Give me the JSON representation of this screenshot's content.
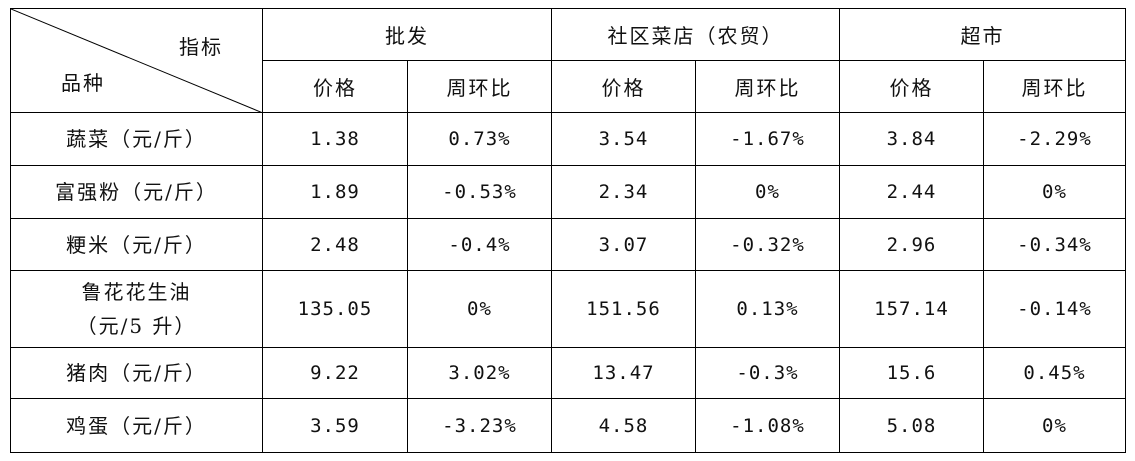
{
  "header": {
    "corner_top": "指标",
    "corner_bottom": "品种",
    "groups": [
      "批发",
      "社区菜店（农贸）",
      "超市"
    ],
    "subheaders": [
      "价格",
      "周环比",
      "价格",
      "周环比",
      "价格",
      "周环比"
    ]
  },
  "rows": [
    {
      "label": [
        "蔬菜（元/斤）"
      ],
      "cells": [
        "1.38",
        "0.73%",
        "3.54",
        "-1.67%",
        "3.84",
        "-2.29%"
      ]
    },
    {
      "label": [
        "富强粉（元/斤）"
      ],
      "cells": [
        "1.89",
        "-0.53%",
        "2.34",
        "0%",
        "2.44",
        "0%"
      ]
    },
    {
      "label": [
        "粳米（元/斤）"
      ],
      "cells": [
        "2.48",
        "-0.4%",
        "3.07",
        "-0.32%",
        "2.96",
        "-0.34%"
      ]
    },
    {
      "label": [
        "鲁花花生油",
        "（元/5 升）"
      ],
      "cells": [
        "135.05",
        "0%",
        "151.56",
        "0.13%",
        "157.14",
        "-0.14%"
      ]
    },
    {
      "label": [
        "猪肉（元/斤）"
      ],
      "cells": [
        "9.22",
        "3.02%",
        "13.47",
        "-0.3%",
        "15.6",
        "0.45%"
      ]
    },
    {
      "label": [
        "鸡蛋（元/斤）"
      ],
      "cells": [
        "3.59",
        "-3.23%",
        "4.58",
        "-1.08%",
        "5.08",
        "0%"
      ]
    }
  ]
}
